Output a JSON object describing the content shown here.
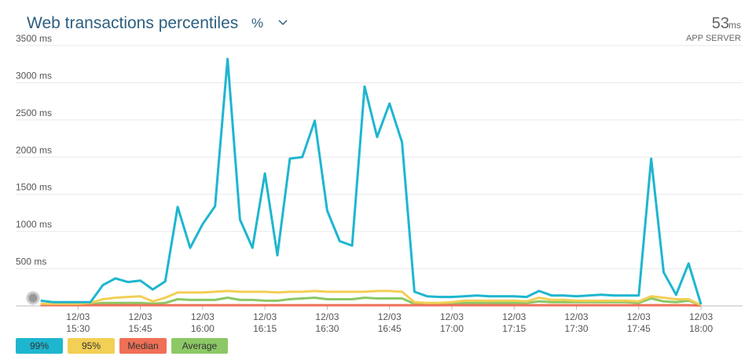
{
  "header": {
    "selector": "%",
    "value": "53",
    "unit": "ms",
    "label": "APP SERVER"
  },
  "chart_data": {
    "type": "line",
    "title": "Web transactions percentiles",
    "x": [
      "15:21",
      "15:24",
      "15:27",
      "15:30",
      "15:33",
      "15:36",
      "15:39",
      "15:42",
      "15:45",
      "15:48",
      "15:51",
      "15:54",
      "15:57",
      "16:00",
      "16:03",
      "16:06",
      "16:09",
      "16:12",
      "16:15",
      "16:18",
      "16:21",
      "16:24",
      "16:27",
      "16:30",
      "16:33",
      "16:36",
      "16:39",
      "16:42",
      "16:45",
      "16:48",
      "16:51",
      "16:54",
      "16:57",
      "17:00",
      "17:03",
      "17:06",
      "17:09",
      "17:12",
      "17:15",
      "17:18",
      "17:21",
      "17:24",
      "17:27",
      "17:30",
      "17:33",
      "17:36",
      "17:39",
      "17:42",
      "17:45",
      "17:48",
      "17:51",
      "17:54",
      "17:57",
      "18:00"
    ],
    "series": [
      {
        "name": "99%",
        "color": "#1eb6cf",
        "values": [
          70,
          50,
          50,
          50,
          50,
          280,
          370,
          320,
          340,
          220,
          330,
          1330,
          780,
          1100,
          1340,
          3320,
          1160,
          780,
          1780,
          680,
          1980,
          2000,
          2490,
          1280,
          870,
          810,
          2950,
          2270,
          2720,
          2200,
          190,
          130,
          120,
          120,
          130,
          140,
          130,
          130,
          130,
          120,
          200,
          140,
          140,
          130,
          140,
          150,
          140,
          140,
          140,
          1980,
          450,
          150,
          570,
          20
        ]
      },
      {
        "name": "95%",
        "color": "#f2cf55",
        "values": [
          30,
          30,
          30,
          30,
          40,
          90,
          110,
          120,
          130,
          60,
          110,
          180,
          180,
          180,
          190,
          200,
          190,
          190,
          190,
          180,
          190,
          190,
          200,
          190,
          190,
          190,
          190,
          200,
          200,
          190,
          50,
          40,
          40,
          50,
          70,
          70,
          70,
          70,
          70,
          60,
          110,
          80,
          80,
          70,
          70,
          70,
          70,
          70,
          60,
          130,
          110,
          90,
          90,
          10
        ]
      },
      {
        "name": "Median",
        "color": "#ef7057",
        "values": [
          10,
          10,
          10,
          10,
          10,
          10,
          10,
          10,
          10,
          10,
          10,
          10,
          10,
          10,
          10,
          10,
          10,
          10,
          10,
          10,
          10,
          10,
          10,
          10,
          10,
          10,
          10,
          10,
          10,
          10,
          10,
          10,
          10,
          10,
          10,
          10,
          10,
          10,
          10,
          10,
          10,
          10,
          10,
          10,
          10,
          10,
          10,
          10,
          10,
          10,
          10,
          10,
          10,
          5
        ]
      },
      {
        "name": "Average",
        "color": "#8cc865",
        "values": [
          20,
          20,
          20,
          20,
          20,
          40,
          40,
          40,
          40,
          30,
          40,
          90,
          80,
          80,
          80,
          110,
          80,
          80,
          70,
          70,
          90,
          100,
          110,
          90,
          90,
          90,
          110,
          100,
          100,
          100,
          30,
          30,
          30,
          30,
          40,
          40,
          40,
          40,
          40,
          40,
          60,
          50,
          50,
          50,
          50,
          50,
          50,
          50,
          40,
          100,
          60,
          50,
          70,
          10
        ]
      }
    ],
    "xlim": [
      "15:15",
      "18:10"
    ],
    "xticks": [
      {
        "value": "15:30",
        "label": "12/03 15:30"
      },
      {
        "value": "15:45",
        "label": "12/03 15:45"
      },
      {
        "value": "16:00",
        "label": "12/03 16:00"
      },
      {
        "value": "16:15",
        "label": "12/03 16:15"
      },
      {
        "value": "16:30",
        "label": "12/03 16:30"
      },
      {
        "value": "16:45",
        "label": "12/03 16:45"
      },
      {
        "value": "17:00",
        "label": "12/03 17:00"
      },
      {
        "value": "17:15",
        "label": "12/03 17:15"
      },
      {
        "value": "17:30",
        "label": "12/03 17:30"
      },
      {
        "value": "17:45",
        "label": "12/03 17:45"
      },
      {
        "value": "18:00",
        "label": "12/03 18:00"
      }
    ],
    "ylim": [
      0,
      3500
    ],
    "yticks": [
      {
        "value": 500,
        "label": "500 ms"
      },
      {
        "value": 1000,
        "label": "1000 ms"
      },
      {
        "value": 1500,
        "label": "1500 ms"
      },
      {
        "value": 2000,
        "label": "2000 ms"
      },
      {
        "value": 2500,
        "label": "2500 ms"
      },
      {
        "value": 3000,
        "label": "3000 ms"
      },
      {
        "value": 3500,
        "label": "3500 ms"
      }
    ],
    "grid": true,
    "legend": "bottom-left"
  }
}
